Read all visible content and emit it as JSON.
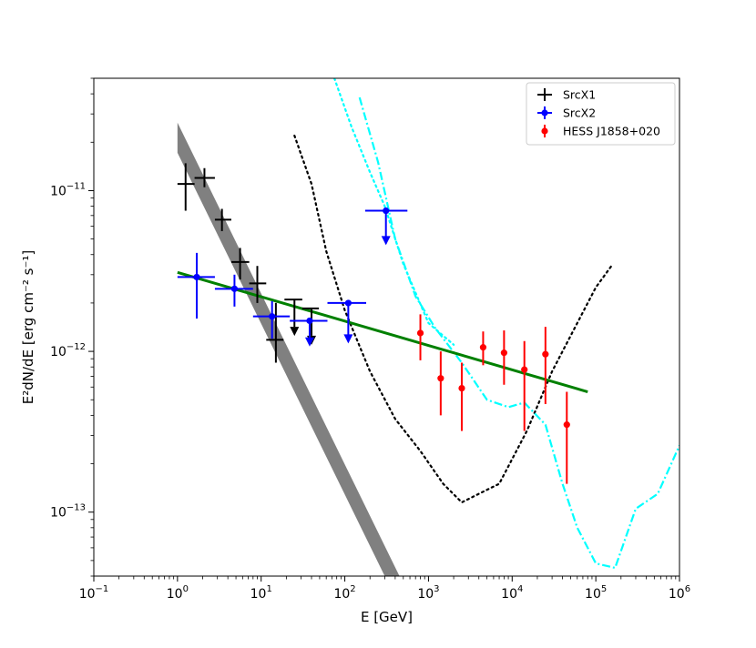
{
  "chart_data": {
    "type": "scatter",
    "title": "",
    "xscale": "log",
    "yscale": "log",
    "xlim": [
      0.1,
      1000000
    ],
    "ylim": [
      4e-14,
      5e-11
    ],
    "xlabel": "E [GeV]",
    "ylabel": "E²dN/dE [erg cm⁻² s⁻¹]",
    "x_ticks": [
      {
        "value": 0.1,
        "base": "10",
        "exp": "−1"
      },
      {
        "value": 1,
        "base": "10",
        "exp": "0"
      },
      {
        "value": 10,
        "base": "10",
        "exp": "1"
      },
      {
        "value": 100,
        "base": "10",
        "exp": "2"
      },
      {
        "value": 1000,
        "base": "10",
        "exp": "3"
      },
      {
        "value": 10000,
        "base": "10",
        "exp": "4"
      },
      {
        "value": 100000,
        "base": "10",
        "exp": "5"
      },
      {
        "value": 1000000,
        "base": "10",
        "exp": "6"
      }
    ],
    "y_ticks": [
      {
        "value": 1e-13,
        "base": "10",
        "exp": "−13"
      },
      {
        "value": 1e-12,
        "base": "10",
        "exp": "−12"
      },
      {
        "value": 1e-11,
        "base": "10",
        "exp": "−11"
      }
    ],
    "legend": {
      "position": "top-right",
      "entries": [
        {
          "label": "SrcX1",
          "color": "#000000"
        },
        {
          "label": "SrcX2",
          "color": "#0000ff"
        },
        {
          "label": "HESS J1858+020",
          "color": "#ff0000"
        }
      ]
    },
    "series": [
      {
        "name": "SrcX1",
        "color": "#000000",
        "marker": "none",
        "points": [
          {
            "x": 1.25,
            "y": 1.1e-11,
            "xlo": 1.0,
            "xhi": 1.6,
            "ylo": 7.5e-12,
            "yhi": 1.48e-11
          },
          {
            "x": 2.1,
            "y": 1.2e-11,
            "xlo": 1.6,
            "xhi": 2.8,
            "ylo": 1.05e-11,
            "yhi": 1.38e-11
          },
          {
            "x": 3.4,
            "y": 6.6e-12,
            "xlo": 2.8,
            "xhi": 4.4,
            "ylo": 5.6e-12,
            "yhi": 7.7e-12
          },
          {
            "x": 5.6,
            "y": 3.6e-12,
            "xlo": 4.4,
            "xhi": 7.2,
            "ylo": 2.8e-12,
            "yhi": 4.4e-12
          },
          {
            "x": 9.0,
            "y": 2.65e-12,
            "xlo": 7.2,
            "xhi": 11.5,
            "ylo": 2e-12,
            "yhi": 3.4e-12
          },
          {
            "x": 15,
            "y": 1.18e-12,
            "xlo": 11.5,
            "xhi": 18.5,
            "ylo": 8.5e-13,
            "yhi": 2e-12
          },
          {
            "x": 25,
            "y": 2.1e-12,
            "xlo": 19,
            "xhi": 31,
            "upper_limit": true
          },
          {
            "x": 40,
            "y": 1.85e-12,
            "xlo": 31,
            "xhi": 49,
            "upper_limit": true
          }
        ]
      },
      {
        "name": "SrcX2",
        "color": "#0000ff",
        "marker": "circle",
        "points": [
          {
            "x": 1.7,
            "y": 2.9e-12,
            "xlo": 1.0,
            "xhi": 2.8,
            "ylo": 1.6e-12,
            "yhi": 4.1e-12
          },
          {
            "x": 4.8,
            "y": 2.45e-12,
            "xlo": 2.8,
            "xhi": 8.0,
            "ylo": 1.9e-12,
            "yhi": 3e-12
          },
          {
            "x": 13.5,
            "y": 1.65e-12,
            "xlo": 8.0,
            "xhi": 22,
            "ylo": 1.2e-12,
            "yhi": 2.05e-12
          },
          {
            "x": 38,
            "y": 1.55e-12,
            "xlo": 22,
            "xhi": 62,
            "ylo": 1.1e-12,
            "upper_limit": true
          },
          {
            "x": 110,
            "y": 2e-12,
            "xlo": 62,
            "xhi": 180,
            "ylo": 1.15e-12,
            "upper_limit": true
          },
          {
            "x": 310,
            "y": 7.5e-12,
            "xlo": 175,
            "xhi": 560,
            "ylo": 4.7e-12,
            "upper_limit": true
          }
        ]
      },
      {
        "name": "HESS J1858+020",
        "color": "#ff0000",
        "marker": "circle",
        "points": [
          {
            "x": 800,
            "y": 1.3e-12,
            "ylo": 8.8e-13,
            "yhi": 1.7e-12
          },
          {
            "x": 1400,
            "y": 6.8e-13,
            "ylo": 4e-13,
            "yhi": 1e-12
          },
          {
            "x": 2500,
            "y": 5.9e-13,
            "ylo": 3.2e-13,
            "yhi": 8.5e-13
          },
          {
            "x": 4500,
            "y": 1.06e-12,
            "ylo": 8.2e-13,
            "yhi": 1.33e-12
          },
          {
            "x": 8000,
            "y": 9.8e-13,
            "ylo": 6.2e-13,
            "yhi": 1.35e-12
          },
          {
            "x": 14000,
            "y": 7.7e-13,
            "ylo": 3.2e-13,
            "yhi": 1.16e-12
          },
          {
            "x": 25000,
            "y": 9.6e-13,
            "ylo": 4.7e-13,
            "yhi": 1.42e-12
          },
          {
            "x": 45000,
            "y": 3.5e-13,
            "ylo": 1.5e-13,
            "yhi": 5.6e-13
          }
        ]
      }
    ],
    "model_band": {
      "name": "SrcX1 power-law band",
      "color": "#808080",
      "upper": [
        [
          1.0,
          2.65e-11
        ],
        [
          450,
          4e-14
        ]
      ],
      "lower": [
        [
          1.0,
          1.72e-11
        ],
        [
          300,
          4e-14
        ]
      ]
    },
    "fit_line": {
      "name": "joint power-law fit",
      "color": "#008000",
      "points": [
        [
          1.0,
          3.1e-12
        ],
        [
          80000,
          5.6e-13
        ]
      ]
    },
    "sensitivity_curves": [
      {
        "name": "black dotted sensitivity",
        "color": "#000000",
        "style": "dotted",
        "points": [
          [
            25,
            2.2e-11
          ],
          [
            40,
            1.1e-11
          ],
          [
            60,
            4.2e-12
          ],
          [
            100,
            1.8e-12
          ],
          [
            200,
            7.5e-13
          ],
          [
            400,
            3.8e-13
          ],
          [
            800,
            2.4e-13
          ],
          [
            1500,
            1.5e-13
          ],
          [
            2500,
            1.15e-13
          ],
          [
            4000,
            1.3e-13
          ],
          [
            7000,
            1.5e-13
          ],
          [
            15000,
            3.2e-13
          ],
          [
            30000,
            7.5e-13
          ],
          [
            60000,
            1.5e-12
          ],
          [
            100000,
            2.5e-12
          ],
          [
            160000,
            3.5e-12
          ]
        ]
      },
      {
        "name": "cyan dotted sensitivity",
        "color": "#00ffff",
        "style": "dotted",
        "points": [
          [
            75,
            5e-11
          ],
          [
            120,
            2.5e-11
          ],
          [
            200,
            1.3e-11
          ],
          [
            300,
            8e-12
          ],
          [
            500,
            3.5e-12
          ],
          [
            1000,
            1.5e-12
          ],
          [
            2000,
            1.1e-12
          ]
        ]
      },
      {
        "name": "cyan dash-dot sensitivity",
        "color": "#00ffff",
        "style": "dashdot",
        "points": [
          [
            150,
            3.8e-11
          ],
          [
            250,
            1.5e-11
          ],
          [
            400,
            5e-12
          ],
          [
            700,
            2.2e-12
          ],
          [
            1200,
            1.4e-12
          ],
          [
            2500,
            8.5e-13
          ],
          [
            5000,
            5e-13
          ],
          [
            9000,
            4.5e-13
          ],
          [
            14000,
            4.8e-13
          ],
          [
            25000,
            3.5e-13
          ],
          [
            40000,
            1.5e-13
          ],
          [
            60000,
            8e-14
          ],
          [
            100000,
            4.8e-14
          ],
          [
            170000,
            4.5e-14
          ],
          [
            300000,
            1.05e-13
          ],
          [
            550000,
            1.3e-13
          ],
          [
            1000000,
            2.6e-13
          ]
        ]
      }
    ]
  }
}
